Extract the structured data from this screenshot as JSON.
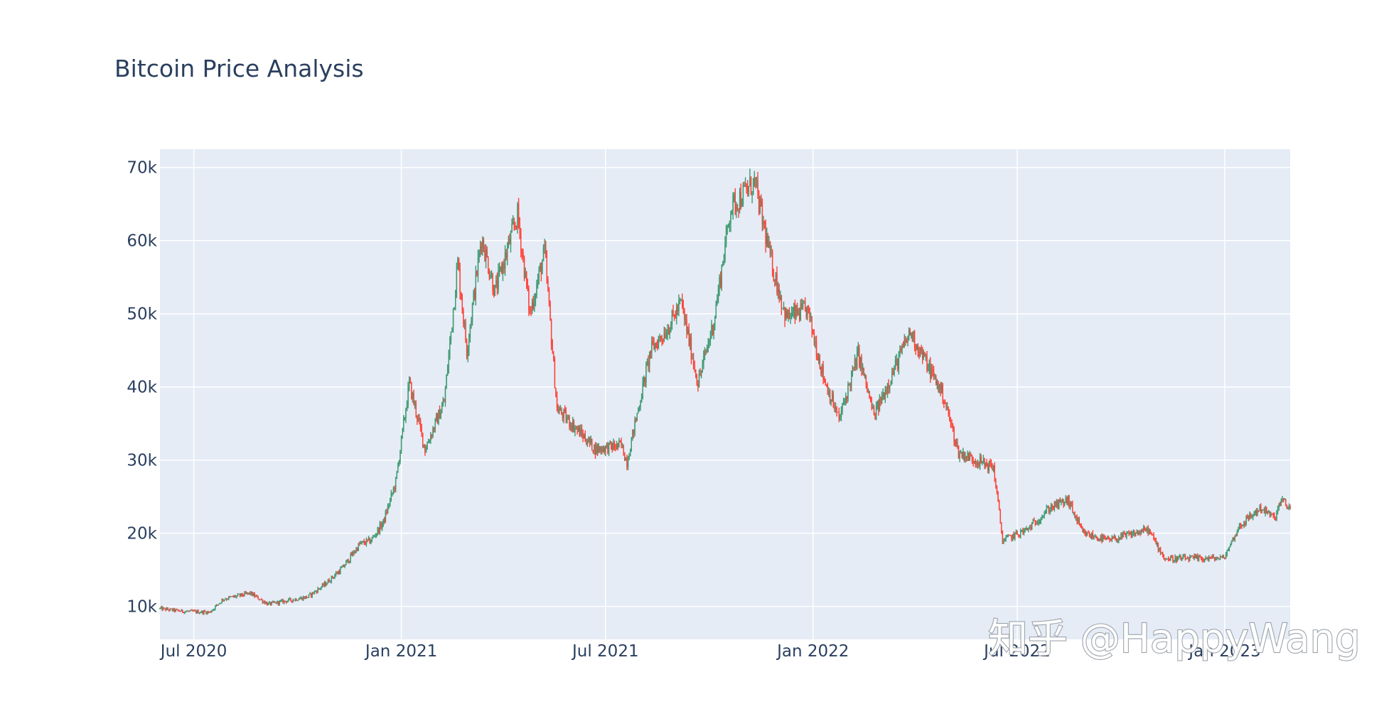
{
  "watermark": "知乎 @HappyWang",
  "chart_data": {
    "type": "candlestick",
    "title": "Bitcoin Price Analysis",
    "xlabel": "",
    "ylabel": "",
    "x_range": [
      "2020-06-01",
      "2023-02-28"
    ],
    "ylim": [
      5500,
      72500
    ],
    "y_ticks": [
      10000,
      20000,
      30000,
      40000,
      50000,
      60000,
      70000
    ],
    "y_tick_labels": [
      "10k",
      "20k",
      "30k",
      "40k",
      "50k",
      "60k",
      "70k"
    ],
    "x_ticks": [
      "2020-07-01",
      "2021-01-01",
      "2021-07-01",
      "2022-01-01",
      "2022-07-01",
      "2023-01-01"
    ],
    "x_tick_labels": [
      "Jul 2020",
      "Jan 2021",
      "Jul 2021",
      "Jan 2022",
      "Jul 2022",
      "Jan 2023"
    ],
    "grid": true,
    "colors": {
      "increasing": "#3d9970",
      "decreasing": "#ff4136",
      "plot_bg": "#e5ecf6",
      "grid": "#ffffff",
      "text": "#2a3f5f"
    },
    "close_path": [
      [
        "2020-06-01",
        9700
      ],
      [
        "2020-06-20",
        9350
      ],
      [
        "2020-07-15",
        9200
      ],
      [
        "2020-07-27",
        11000
      ],
      [
        "2020-08-20",
        11800
      ],
      [
        "2020-09-05",
        10300
      ],
      [
        "2020-10-10",
        11300
      ],
      [
        "2020-10-25",
        13000
      ],
      [
        "2020-11-10",
        15300
      ],
      [
        "2020-11-25",
        18500
      ],
      [
        "2020-12-05",
        19000
      ],
      [
        "2020-12-16",
        21500
      ],
      [
        "2020-12-27",
        27000
      ],
      [
        "2021-01-08",
        40500
      ],
      [
        "2021-01-22",
        31500
      ],
      [
        "2021-02-08",
        38000
      ],
      [
        "2021-02-20",
        57000
      ],
      [
        "2021-02-28",
        45000
      ],
      [
        "2021-03-13",
        60500
      ],
      [
        "2021-03-25",
        53000
      ],
      [
        "2021-04-14",
        63500
      ],
      [
        "2021-04-25",
        50000
      ],
      [
        "2021-05-08",
        58500
      ],
      [
        "2021-05-19",
        37000
      ],
      [
        "2021-06-07",
        34000
      ],
      [
        "2021-06-22",
        31500
      ],
      [
        "2021-07-15",
        32000
      ],
      [
        "2021-07-20",
        29800
      ],
      [
        "2021-08-10",
        45000
      ],
      [
        "2021-08-25",
        48000
      ],
      [
        "2021-09-06",
        51500
      ],
      [
        "2021-09-21",
        40500
      ],
      [
        "2021-10-05",
        49000
      ],
      [
        "2021-10-20",
        64500
      ],
      [
        "2021-11-10",
        68000
      ],
      [
        "2021-11-25",
        57000
      ],
      [
        "2021-12-08",
        49500
      ],
      [
        "2021-12-27",
        50500
      ],
      [
        "2022-01-10",
        41500
      ],
      [
        "2022-01-24",
        35500
      ],
      [
        "2022-02-10",
        44500
      ],
      [
        "2022-02-24",
        36000
      ],
      [
        "2022-03-28",
        47500
      ],
      [
        "2022-04-26",
        39000
      ],
      [
        "2022-05-10",
        31000
      ],
      [
        "2022-06-10",
        29000
      ],
      [
        "2022-06-18",
        19000
      ],
      [
        "2022-07-10",
        20500
      ],
      [
        "2022-07-30",
        23500
      ],
      [
        "2022-08-15",
        24500
      ],
      [
        "2022-08-28",
        20000
      ],
      [
        "2022-09-20",
        19000
      ],
      [
        "2022-10-25",
        20500
      ],
      [
        "2022-11-09",
        16500
      ],
      [
        "2022-12-31",
        16600
      ],
      [
        "2023-01-14",
        21000
      ],
      [
        "2023-02-02",
        23500
      ],
      [
        "2023-02-14",
        22000
      ],
      [
        "2023-02-20",
        24500
      ],
      [
        "2023-02-28",
        23300
      ]
    ]
  }
}
